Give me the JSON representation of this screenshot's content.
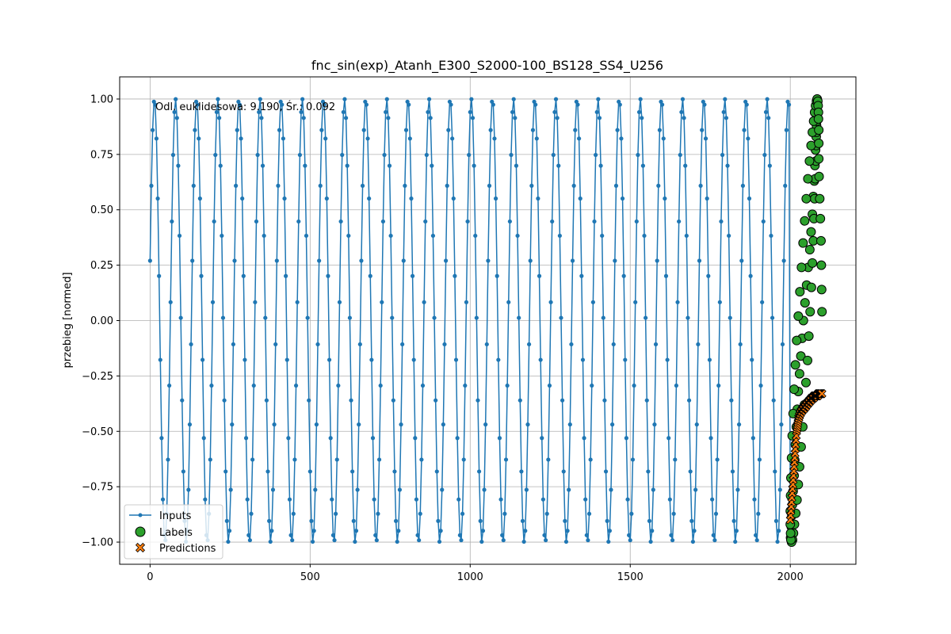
{
  "chart_data": {
    "type": "line",
    "title": "fnc_sin(exp)_Atanh_E300_S2000-100_BS128_SS4_U256",
    "xlabel": "",
    "ylabel": "przebieg [normed]",
    "annotation": "Odl. euklidesowa: 9.190, Śr.: 0.092",
    "xlim": [
      -95,
      2205
    ],
    "ylim": [
      -1.1,
      1.1
    ],
    "x_ticks": [
      0,
      500,
      1000,
      1500,
      2000
    ],
    "x_tick_labels": [
      "0",
      "500",
      "1000",
      "1500",
      "2000"
    ],
    "y_ticks": [
      1.0,
      0.75,
      0.5,
      0.25,
      0.0,
      -0.25,
      -0.5,
      -0.75,
      -1.0
    ],
    "y_tick_labels": [
      "1.00",
      "0.75",
      "0.50",
      "0.25",
      "0.00",
      "−0.25",
      "−0.50",
      "−0.75",
      "−1.00"
    ],
    "grid": true,
    "legend_position": "lower-left",
    "colors": {
      "inputs": "#1f77b4",
      "labels": "#2ca02c",
      "predictions": "#ff7f0e",
      "marker_edge": "#000000"
    },
    "series": [
      {
        "name": "Inputs",
        "style": "line-with-dots",
        "x_range": [
          0,
          2000
        ],
        "period_approx": 66,
        "first_value": 0.27,
        "last_value": -0.88,
        "min": -1.0,
        "max": 1.0
      },
      {
        "name": "Labels",
        "style": "scatter-circle",
        "x": [
          2001,
          2003,
          2005,
          2007,
          2009,
          2012,
          2014,
          2016,
          2019,
          2022,
          2025,
          2029,
          2033,
          2037,
          2041,
          2046,
          2051,
          2056,
          2061,
          2065,
          2069,
          2072,
          2075,
          2077,
          2079,
          2081,
          2082,
          2083,
          2083,
          2084,
          2084,
          2084,
          2084,
          2083,
          2083,
          2082,
          2081,
          2080,
          2078,
          2076,
          2074,
          2072,
          2069,
          2066,
          2062,
          2058,
          2054,
          2049,
          2044,
          2039,
          2034,
          2029,
          2025,
          2021,
          2017,
          2013,
          2010,
          2007,
          2004,
          2002,
          2001,
          2000,
          2000,
          2001,
          2002,
          2004,
          2006,
          2009,
          2012,
          2016,
          2020,
          2025,
          2030,
          2035,
          2040,
          2045,
          2050,
          2055,
          2060,
          2065,
          2069,
          2073,
          2076,
          2079,
          2082,
          2084,
          2086,
          2087,
          2088,
          2088,
          2089,
          2089,
          2089,
          2090,
          2092,
          2094,
          2096,
          2097,
          2098,
          2099
        ],
        "y": [
          -0.98,
          -0.93,
          -0.88,
          -0.83,
          -0.77,
          -0.7,
          -0.63,
          -0.56,
          -0.48,
          -0.4,
          -0.32,
          -0.24,
          -0.16,
          -0.08,
          0.0,
          0.08,
          0.16,
          0.24,
          0.32,
          0.4,
          0.48,
          0.56,
          0.63,
          0.7,
          0.77,
          0.83,
          0.88,
          0.92,
          0.96,
          0.98,
          1.0,
          0.99,
          0.97,
          0.94,
          0.9,
          0.85,
          0.79,
          0.72,
          0.64,
          0.55,
          0.46,
          0.36,
          0.26,
          0.15,
          0.04,
          -0.07,
          -0.18,
          -0.28,
          -0.38,
          -0.48,
          -0.57,
          -0.66,
          -0.74,
          -0.81,
          -0.87,
          -0.92,
          -0.96,
          -0.99,
          -1.0,
          -0.99,
          -0.96,
          -0.92,
          -0.86,
          -0.79,
          -0.71,
          -0.62,
          -0.52,
          -0.42,
          -0.31,
          -0.2,
          -0.09,
          0.02,
          0.13,
          0.24,
          0.35,
          0.45,
          0.55,
          0.64,
          0.72,
          0.79,
          0.85,
          0.9,
          0.94,
          0.97,
          0.99,
          1.0,
          0.99,
          0.97,
          0.94,
          0.91,
          0.86,
          0.8,
          0.73,
          0.65,
          0.55,
          0.46,
          0.36,
          0.25,
          0.14,
          0.04
        ]
      },
      {
        "name": "Predictions",
        "style": "scatter-x",
        "x": [
          2000,
          2001,
          2002,
          2003,
          2004,
          2005,
          2006,
          2007,
          2008,
          2009,
          2010,
          2011,
          2012,
          2013,
          2014,
          2015,
          2016,
          2017,
          2018,
          2019,
          2020,
          2021,
          2022,
          2023,
          2024,
          2025,
          2026,
          2027,
          2028,
          2029,
          2030,
          2031,
          2032,
          2033,
          2034,
          2035,
          2036,
          2037,
          2038,
          2039,
          2040,
          2041,
          2042,
          2043,
          2044,
          2045,
          2046,
          2047,
          2048,
          2049,
          2050,
          2051,
          2052,
          2053,
          2054,
          2055,
          2056,
          2057,
          2058,
          2059,
          2060,
          2061,
          2062,
          2063,
          2064,
          2065,
          2066,
          2067,
          2068,
          2069,
          2070,
          2071,
          2072,
          2073,
          2074,
          2075,
          2076,
          2077,
          2078,
          2079,
          2080,
          2081,
          2082,
          2083,
          2084,
          2085,
          2086,
          2087,
          2088,
          2089,
          2090,
          2091,
          2092,
          2093,
          2094,
          2095,
          2096,
          2097,
          2098,
          2099
        ],
        "y": [
          -0.9,
          -0.88,
          -0.86,
          -0.84,
          -0.82,
          -0.8,
          -0.78,
          -0.76,
          -0.74,
          -0.72,
          -0.7,
          -0.68,
          -0.66,
          -0.64,
          -0.62,
          -0.6,
          -0.58,
          -0.56,
          -0.54,
          -0.52,
          -0.5,
          -0.49,
          -0.48,
          -0.47,
          -0.46,
          -0.45,
          -0.44,
          -0.44,
          -0.43,
          -0.43,
          -0.42,
          -0.42,
          -0.42,
          -0.41,
          -0.41,
          -0.41,
          -0.41,
          -0.4,
          -0.4,
          -0.4,
          -0.4,
          -0.4,
          -0.4,
          -0.39,
          -0.39,
          -0.39,
          -0.39,
          -0.39,
          -0.39,
          -0.38,
          -0.38,
          -0.38,
          -0.38,
          -0.38,
          -0.37,
          -0.37,
          -0.37,
          -0.37,
          -0.37,
          -0.37,
          -0.36,
          -0.36,
          -0.36,
          -0.36,
          -0.36,
          -0.36,
          -0.35,
          -0.35,
          -0.35,
          -0.35,
          -0.35,
          -0.35,
          -0.35,
          -0.35,
          -0.34,
          -0.34,
          -0.34,
          -0.34,
          -0.34,
          -0.34,
          -0.34,
          -0.34,
          -0.34,
          -0.34,
          -0.34,
          -0.34,
          -0.34,
          -0.33,
          -0.33,
          -0.33,
          -0.33,
          -0.33,
          -0.33,
          -0.33,
          -0.33,
          -0.33,
          -0.33,
          -0.33,
          -0.33,
          -0.33
        ]
      }
    ]
  }
}
